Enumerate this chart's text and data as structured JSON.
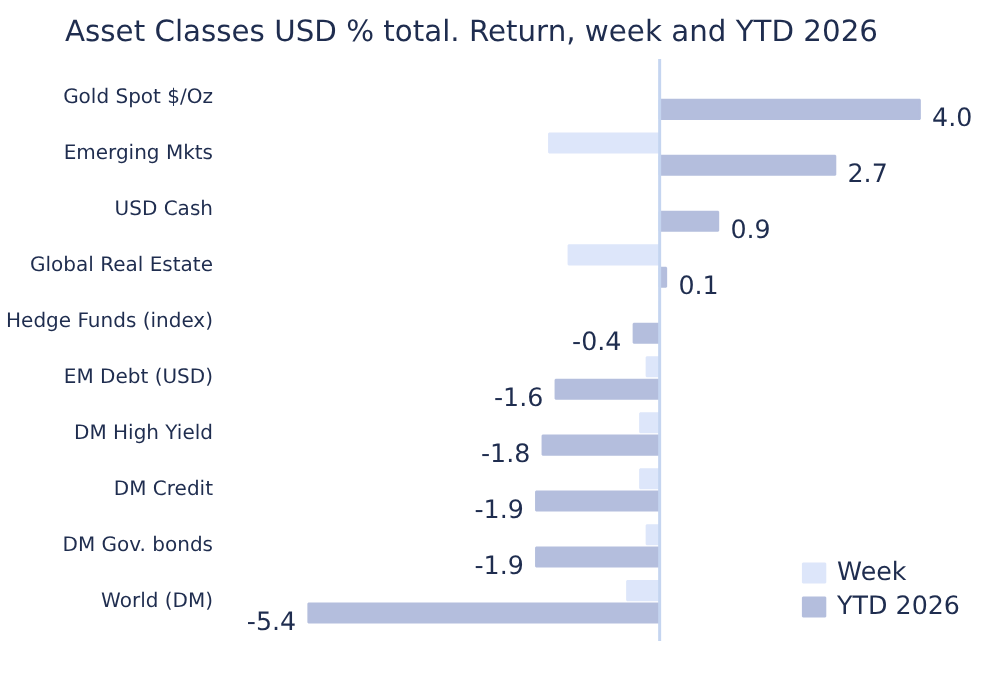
{
  "chart_data": {
    "type": "bar",
    "orientation": "horizontal",
    "title": "Asset Classes USD % total. Return, week and YTD 2026",
    "categories": [
      "Gold Spot $/Oz",
      "Emerging Mkts",
      "USD Cash",
      "Global Real Estate",
      "Hedge Funds (index)",
      "EM Debt (USD)",
      "DM High Yield",
      "DM Credit",
      "DM Gov. bonds",
      "World (DM)"
    ],
    "series": [
      {
        "name": "Week",
        "color": "#dde6fa",
        "values": [
          0.0,
          -1.7,
          0.0,
          -1.4,
          0.0,
          -0.2,
          -0.3,
          -0.3,
          -0.2,
          -0.5
        ]
      },
      {
        "name": "YTD 2026",
        "color": "#b4bedd",
        "values": [
          4.0,
          2.7,
          0.9,
          0.1,
          -0.4,
          -1.6,
          -1.8,
          -1.9,
          -1.9,
          -5.4
        ],
        "value_labels": [
          "4.0",
          "2.7",
          "0.9",
          "0.1",
          "-0.4",
          "-1.6",
          "-1.8",
          "-1.9",
          "-1.9",
          "-5.4"
        ]
      }
    ],
    "ref_lines": [
      {
        "axis": "x",
        "value": 0,
        "color": "#c5d5f0"
      }
    ],
    "legend": "bottom right"
  }
}
